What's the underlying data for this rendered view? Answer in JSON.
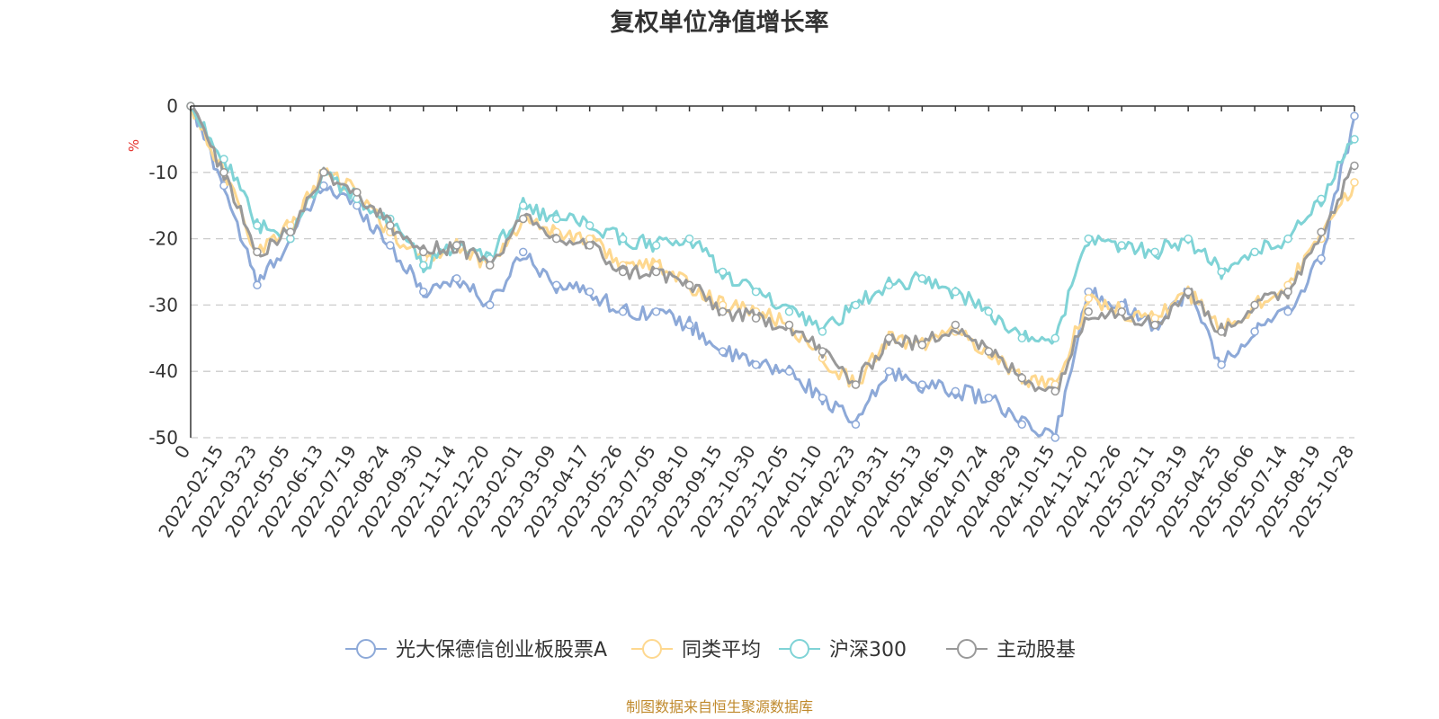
{
  "chart_data": {
    "type": "line",
    "title": "复权单位净值增长率",
    "ylabel": "%",
    "ylim": [
      -50,
      0
    ],
    "yticks": [
      0,
      -10,
      -20,
      -30,
      -40,
      -50
    ],
    "x_ticks": [
      "0",
      "2022-02-15",
      "2022-03-23",
      "2022-05-05",
      "2022-06-13",
      "2022-07-19",
      "2022-08-24",
      "2022-09-30",
      "2022-11-14",
      "2022-12-20",
      "2023-02-01",
      "2023-03-09",
      "2023-04-17",
      "2023-05-26",
      "2023-07-05",
      "2023-08-10",
      "2023-09-15",
      "2023-10-30",
      "2023-12-05",
      "2024-01-10",
      "2024-02-23",
      "2024-03-31",
      "2024-05-13",
      "2024-06-19",
      "2024-07-24",
      "2024-08-29",
      "2024-10-15",
      "2024-11-20",
      "2024-12-26",
      "2025-02-11",
      "2025-03-19",
      "2025-04-25",
      "2025-06-06",
      "2025-07-14",
      "2025-08-19",
      "2025-10-28"
    ],
    "grid": true,
    "legend_position": "bottom",
    "series": [
      {
        "name": "光大保德信创业板股票A",
        "color": "#8da9d8",
        "values": [
          0,
          -12,
          -27,
          -20,
          -12,
          -15,
          -21,
          -28,
          -26,
          -30,
          -22,
          -27,
          -28,
          -31,
          -31,
          -33,
          -37,
          -39,
          -40,
          -44,
          -48,
          -40,
          -42,
          -43,
          -44,
          -48,
          -50,
          -28,
          -30,
          -33,
          -28,
          -39,
          -34,
          -31,
          -23,
          -1.5
        ]
      },
      {
        "name": "同类平均",
        "color": "#fed88f",
        "values": [
          0,
          -10,
          -22,
          -18,
          -10,
          -13,
          -19,
          -23,
          -21,
          -24,
          -17,
          -19,
          -20,
          -24,
          -24,
          -27,
          -30,
          -31,
          -33,
          -38,
          -42,
          -35,
          -36,
          -34,
          -37,
          -41,
          -42,
          -29,
          -31,
          -32,
          -28,
          -34,
          -30,
          -27,
          -20,
          -11.5
        ]
      },
      {
        "name": "沪深300",
        "color": "#7fd3d6",
        "values": [
          0,
          -8,
          -18,
          -20,
          -10,
          -14,
          -17,
          -24,
          -21,
          -23,
          -15,
          -17,
          -18,
          -20,
          -21,
          -20,
          -25,
          -28,
          -31,
          -34,
          -30,
          -27,
          -26,
          -28,
          -31,
          -35,
          -35,
          -20,
          -21,
          -22,
          -20,
          -25,
          -22,
          -20,
          -14,
          -5
        ]
      },
      {
        "name": "主动股基",
        "color": "#999999",
        "values": [
          0,
          -10,
          -22,
          -19,
          -10,
          -13,
          -18,
          -22,
          -21,
          -24,
          -17,
          -20,
          -21,
          -25,
          -25,
          -27,
          -31,
          -32,
          -33,
          -37,
          -42,
          -35,
          -36,
          -33,
          -37,
          -41,
          -43,
          -31,
          -31,
          -33,
          -28,
          -34,
          -30,
          -28,
          -19,
          -9
        ]
      }
    ]
  },
  "source_text": "制图数据来自恒生聚源数据库"
}
